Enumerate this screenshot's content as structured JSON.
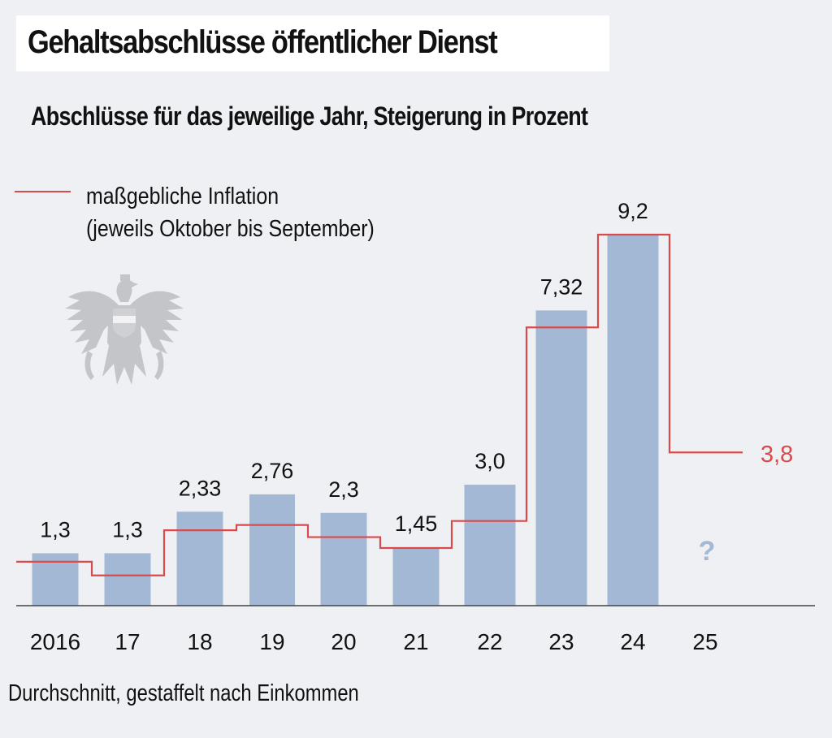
{
  "header": {
    "title": "Gehaltsabschlüsse öffentlicher Dienst",
    "subtitle": "Abschlüsse für das jeweilige Jahr, Steigerung in Prozent"
  },
  "legend": {
    "line_label_1": "maßgebliche Inflation",
    "line_label_2": "(jeweils Oktober bis September)",
    "line_color": "#d94a4a"
  },
  "decoration": {
    "icon": "austrian-eagle-coat-of-arms-icon"
  },
  "footnote": "Durchschnitt, gestaffelt nach Einkommen",
  "chart_data": {
    "type": "bar",
    "title": "Gehaltsabschlüsse öffentlicher Dienst",
    "subtitle": "Abschlüsse für das jeweilige Jahr, Steigerung in Prozent",
    "xlabel": "",
    "ylabel": "",
    "ylim": [
      0,
      9.2
    ],
    "grid": false,
    "legend_position": "top-left",
    "categories": [
      "2016",
      "17",
      "18",
      "19",
      "20",
      "21",
      "22",
      "23",
      "24",
      "25"
    ],
    "series": [
      {
        "name": "Gehaltsabschluss",
        "type": "bar",
        "color": "#a3b8d4",
        "values": [
          1.3,
          1.3,
          2.33,
          2.76,
          2.3,
          1.45,
          3.0,
          7.32,
          9.2,
          null
        ],
        "labels": [
          "1,3",
          "1,3",
          "2,33",
          "2,76",
          "2,3",
          "1,45",
          "3,0",
          "7,32",
          "9,2",
          "?"
        ]
      },
      {
        "name": "maßgebliche Inflation (jeweils Oktober bis September)",
        "type": "step-line",
        "color": "#d94a4a",
        "values": [
          1.09,
          0.75,
          1.87,
          2.0,
          1.7,
          1.43,
          2.1,
          6.9,
          9.2,
          3.8
        ],
        "end_label": "3,8"
      }
    ],
    "unknown_marker": "?",
    "unknown_marker_color": "#a3b8d4"
  }
}
